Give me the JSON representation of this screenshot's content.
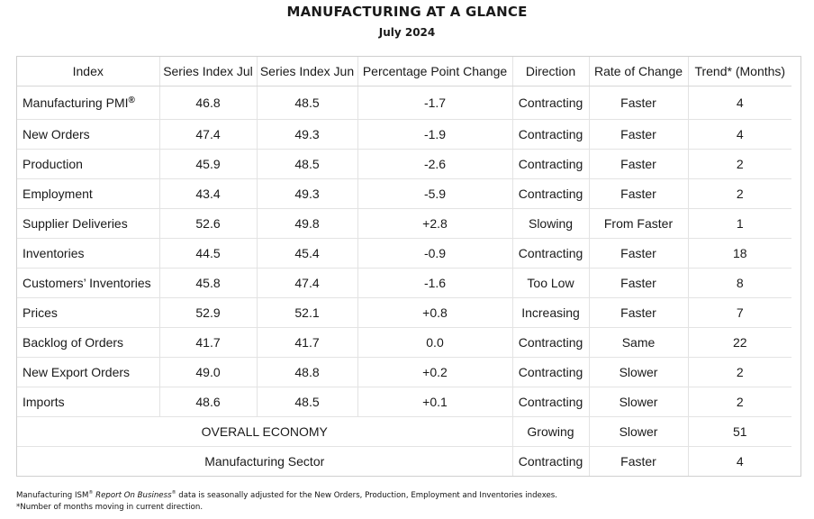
{
  "title": "MANUFACTURING AT A GLANCE",
  "subtitle": "July 2024",
  "headers": [
    "Index",
    "Series Index Jul",
    "Series Index Jun",
    "Percentage Point Change",
    "Direction",
    "Rate of Change",
    "Trend* (Months)"
  ],
  "rows": [
    {
      "index": "Manufacturing PMI",
      "index_sup": "®",
      "jul": "46.8",
      "jun": "48.5",
      "change": "-1.7",
      "direction": "Contracting",
      "rate": "Faster",
      "trend": "4"
    },
    {
      "index": "New Orders",
      "jul": "47.4",
      "jun": "49.3",
      "change": "-1.9",
      "direction": "Contracting",
      "rate": "Faster",
      "trend": "4"
    },
    {
      "index": "Production",
      "jul": "45.9",
      "jun": "48.5",
      "change": "-2.6",
      "direction": "Contracting",
      "rate": "Faster",
      "trend": "2"
    },
    {
      "index": "Employment",
      "jul": "43.4",
      "jun": "49.3",
      "change": "-5.9",
      "direction": "Contracting",
      "rate": "Faster",
      "trend": "2"
    },
    {
      "index": "Supplier Deliveries",
      "jul": "52.6",
      "jun": "49.8",
      "change": "+2.8",
      "direction": "Slowing",
      "rate": "From Faster",
      "trend": "1"
    },
    {
      "index": "Inventories",
      "jul": "44.5",
      "jun": "45.4",
      "change": "-0.9",
      "direction": "Contracting",
      "rate": "Faster",
      "trend": "18"
    },
    {
      "index": "Customers’ Inventories",
      "jul": "45.8",
      "jun": "47.4",
      "change": "-1.6",
      "direction": "Too Low",
      "rate": "Faster",
      "trend": "8"
    },
    {
      "index": "Prices",
      "jul": "52.9",
      "jun": "52.1",
      "change": "+0.8",
      "direction": "Increasing",
      "rate": "Faster",
      "trend": "7"
    },
    {
      "index": "Backlog of Orders",
      "jul": "41.7",
      "jun": "41.7",
      "change": "0.0",
      "direction": "Contracting",
      "rate": "Same",
      "trend": "22"
    },
    {
      "index": "New Export Orders",
      "jul": "49.0",
      "jun": "48.8",
      "change": "+0.2",
      "direction": "Contracting",
      "rate": "Slower",
      "trend": "2"
    },
    {
      "index": "Imports",
      "jul": "48.6",
      "jun": "48.5",
      "change": "+0.1",
      "direction": "Contracting",
      "rate": "Slower",
      "trend": "2"
    }
  ],
  "summary": [
    {
      "label": "OVERALL ECONOMY",
      "direction": "Growing",
      "rate": "Slower",
      "trend": "51"
    },
    {
      "label": "Manufacturing Sector",
      "direction": "Contracting",
      "rate": "Faster",
      "trend": "4"
    }
  ],
  "footnote": {
    "line1_prefix": "Manufacturing ISM",
    "line1_sup": "®",
    "line1_italic": "Report On Business",
    "line1_italic_sup": "®",
    "line1_suffix": " data is seasonally adjusted for the New Orders, Production, Employment and Inventories indexes.",
    "line2": "*Number of months moving in current direction."
  }
}
